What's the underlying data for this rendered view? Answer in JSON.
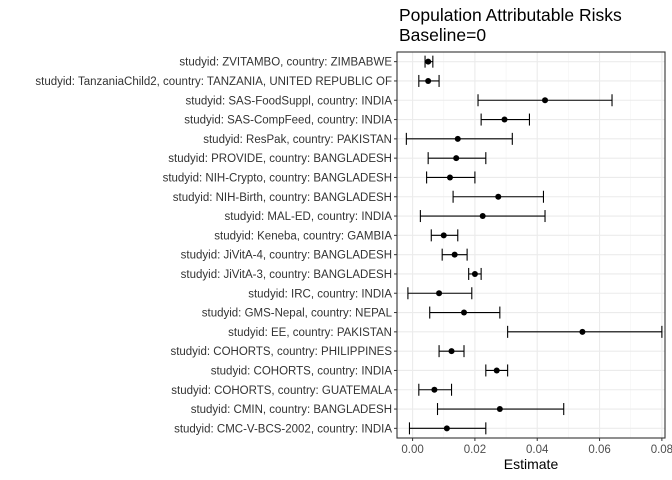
{
  "chart_data": {
    "type": "errorbar",
    "title": "Population Attributable Risks",
    "subtitle": "Baseline=0",
    "xlabel": "Estimate",
    "ylabel": "",
    "xlim": [
      -0.005,
      0.081
    ],
    "x_ticks": [
      0.0,
      0.02,
      0.04,
      0.06,
      0.08
    ],
    "x_tick_labels": [
      "0.00",
      "0.02",
      "0.04",
      "0.06",
      "0.08"
    ],
    "grid": true,
    "categories": [
      "studyid: ZVITAMBO, country: ZIMBABWE",
      "studyid: TanzaniaChild2, country: TANZANIA, UNITED REPUBLIC OF",
      "studyid: SAS-FoodSuppl, country: INDIA",
      "studyid: SAS-CompFeed, country: INDIA",
      "studyid: ResPak, country: PAKISTAN",
      "studyid: PROVIDE, country: BANGLADESH",
      "studyid: NIH-Crypto, country: BANGLADESH",
      "studyid: NIH-Birth, country: BANGLADESH",
      "studyid: MAL-ED, country: INDIA",
      "studyid: Keneba, country: GAMBIA",
      "studyid: JiVitA-4, country: BANGLADESH",
      "studyid: JiVitA-3, country: BANGLADESH",
      "studyid: IRC, country: INDIA",
      "studyid: GMS-Nepal, country: NEPAL",
      "studyid: EE, country: PAKISTAN",
      "studyid: COHORTS, country: PHILIPPINES",
      "studyid: COHORTS, country: INDIA",
      "studyid: COHORTS, country: GUATEMALA",
      "studyid: CMIN, country: BANGLADESH",
      "studyid: CMC-V-BCS-2002, country: INDIA"
    ],
    "estimate": [
      0.005,
      0.005,
      0.0425,
      0.0295,
      0.0145,
      0.014,
      0.012,
      0.0275,
      0.0225,
      0.01,
      0.0135,
      0.02,
      0.0085,
      0.0165,
      0.0545,
      0.0125,
      0.027,
      0.007,
      0.028,
      0.011
    ],
    "lower": [
      0.004,
      0.002,
      0.021,
      0.022,
      -0.002,
      0.005,
      0.0045,
      0.013,
      0.0025,
      0.006,
      0.0095,
      0.018,
      -0.0015,
      0.0055,
      0.0305,
      0.0085,
      0.0235,
      0.002,
      0.008,
      -0.001
    ],
    "upper": [
      0.0065,
      0.0085,
      0.064,
      0.0375,
      0.032,
      0.0235,
      0.02,
      0.042,
      0.0425,
      0.0145,
      0.0175,
      0.022,
      0.019,
      0.028,
      0.08,
      0.0165,
      0.0305,
      0.0125,
      0.0485,
      0.0235
    ]
  }
}
